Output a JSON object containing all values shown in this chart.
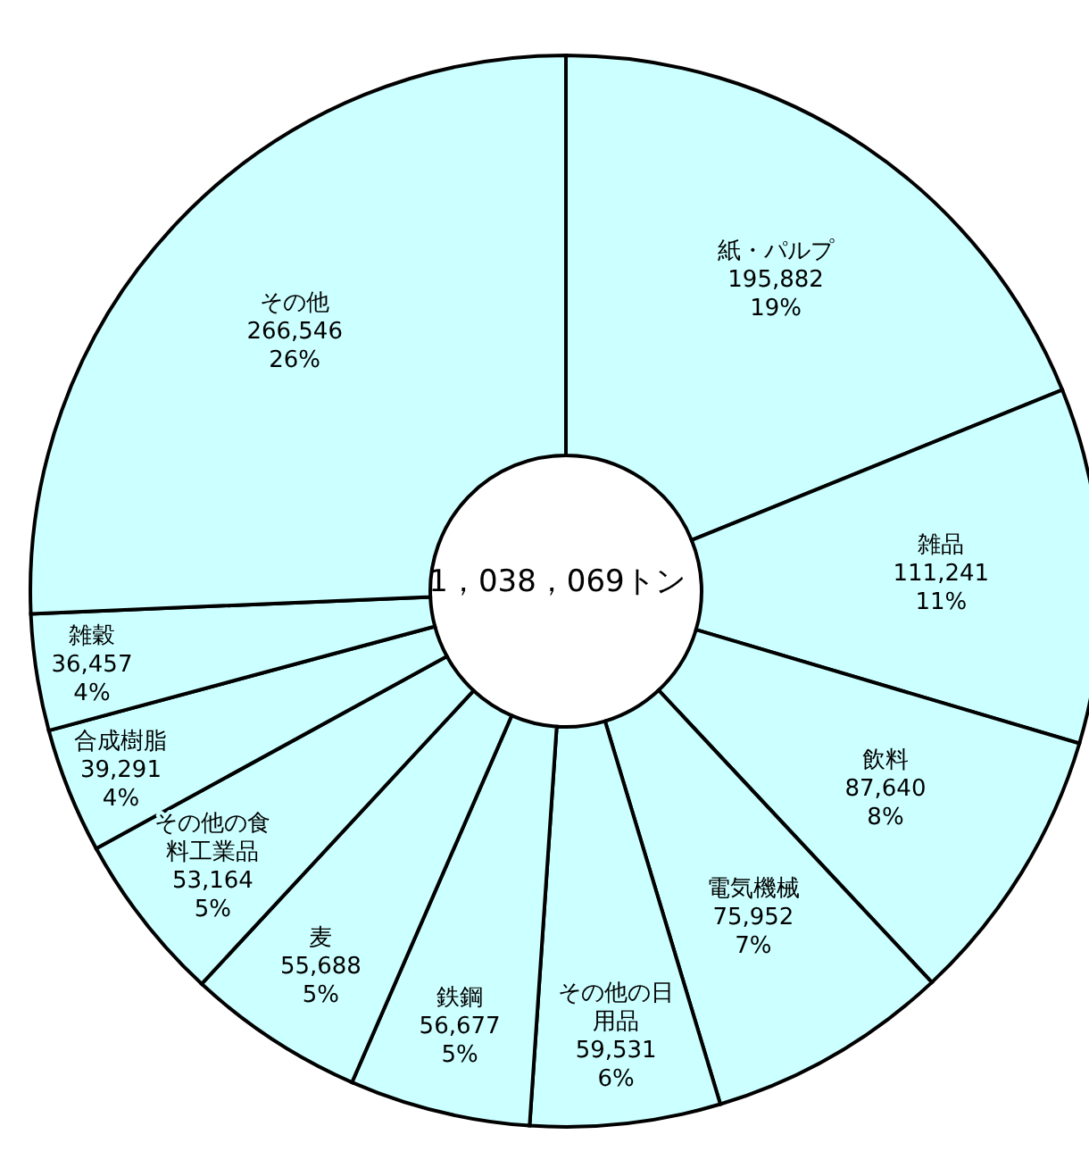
{
  "chart_data": {
    "type": "donut",
    "categories": [
      "紙・パルプ",
      "雑品",
      "飲料",
      "電気機械",
      "その他の日用品",
      "鉄鋼",
      "麦",
      "その他の食料工業品",
      "合成樹脂",
      "雑穀",
      "その他"
    ],
    "values": [
      195882,
      111241,
      87640,
      75952,
      59531,
      56677,
      55688,
      53164,
      39291,
      36457,
      266546
    ],
    "colors": [
      "#ccffff",
      "#ccffff",
      "#ccffff",
      "#ccffff",
      "#ccffff",
      "#ccffff",
      "#ccffff",
      "#ccffff",
      "#ccffff",
      "#ccffff",
      "#ccffff"
    ],
    "value_labels": [
      "195,882\n19%",
      "111,241\n11%",
      "87,640\n8%",
      "75,952\n7%",
      "59,531\n6%",
      "56,677\n5%",
      "55,688\n5%",
      "53,164\n5%",
      "39,291\n4%",
      "36,457\n4%",
      "266,546\n26%"
    ],
    "annotations": [
      "1，038，069トン"
    ]
  }
}
